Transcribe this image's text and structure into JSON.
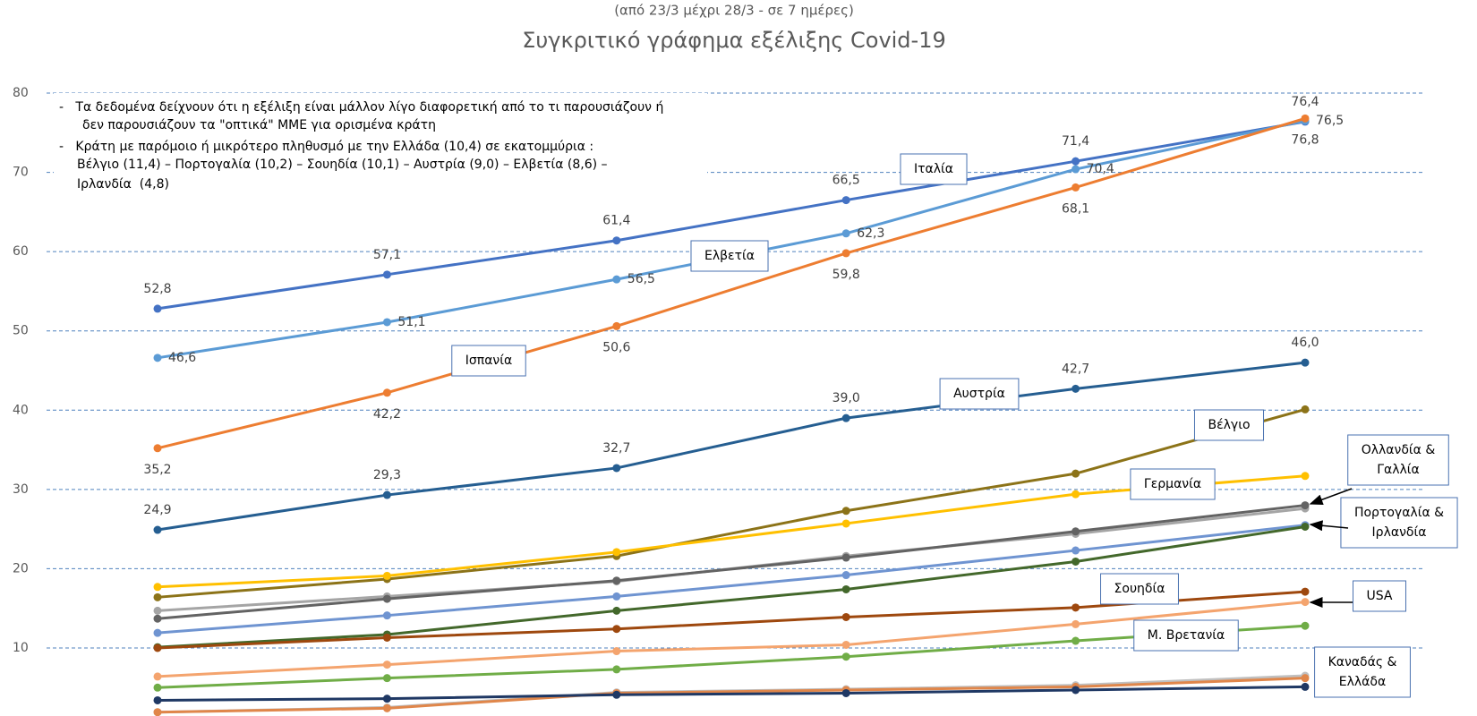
{
  "chart_data": {
    "type": "line",
    "subtitle": "(από 23/3 μέχρι 28/3 - σε 7 ημέρες)",
    "title": "Συγκριτικό γράφημα εξέλιξης Covid-19",
    "notes": [
      "-   Τα δεδομένα δείχνουν ότι η εξέλιξη είναι μάλλον λίγο διαφορετική από το τι παρουσιάζουν ή",
      "δεν παρουσιάζουν τα \"οπτικά\" ΜΜΕ για ορισμένα κράτη",
      "-   Κράτη με παρόμοιο ή μικρότερο πληθυσμό με την Ελλάδα (10,4) σε εκατομμύρια :",
      "Βέλγιο (11,4) – Πορτογαλία (10,2) – Σουηδία (10,1) – Αυστρία (9,0) – Ελβετία (8,6) –",
      "Ιρλανδία  (4,8)"
    ],
    "categories": [
      null,
      null,
      null,
      null,
      null,
      null
    ],
    "ylim": [
      0,
      80
    ],
    "yticks": [
      10,
      20,
      30,
      40,
      50,
      60,
      70,
      80
    ],
    "grid": true,
    "series": [
      {
        "name": "Ιταλία",
        "color": "#4472c4",
        "values": [
          52.8,
          57.1,
          61.4,
          66.5,
          71.4,
          76.4
        ],
        "value_labels": [
          "52,8",
          "57,1",
          "61,4",
          "66,5",
          "71,4",
          "76,4"
        ]
      },
      {
        "name": "Ελβετία",
        "color": "#5b9bd5",
        "values": [
          46.6,
          51.1,
          56.5,
          62.3,
          70.4,
          76.5
        ],
        "value_labels": [
          "46,6",
          "51,1",
          "56,5",
          "62,3",
          "70,4",
          "76,5"
        ]
      },
      {
        "name": "Ισπανία",
        "color": "#ed7d31",
        "values": [
          35.2,
          42.2,
          50.6,
          59.8,
          68.1,
          76.8
        ],
        "value_labels": [
          "35,2",
          "42,2",
          "50,6",
          "59,8",
          "68,1",
          "76,8"
        ]
      },
      {
        "name": "Αυστρία",
        "color": "#255e91",
        "values": [
          24.9,
          29.3,
          32.7,
          39.0,
          42.7,
          46.0
        ],
        "value_labels": [
          "24,9",
          "29,3",
          "32,7",
          "39,0",
          "42,7",
          "46,0"
        ]
      },
      {
        "name": "Βέλγιο",
        "color": "#8c7318",
        "values": [
          16.4,
          18.7,
          21.6,
          27.3,
          32.0,
          40.1
        ]
      },
      {
        "name": "Γερμανία",
        "color": "#ffc000",
        "values": [
          17.7,
          19.1,
          22.1,
          25.7,
          29.4,
          31.7
        ]
      },
      {
        "color": "#a5a5a5",
        "values": [
          14.7,
          16.5,
          18.4,
          21.6,
          24.4,
          27.6
        ]
      },
      {
        "color": "#636363",
        "values": [
          13.7,
          16.2,
          18.5,
          21.4,
          24.7,
          28.0
        ]
      },
      {
        "color": "#6f94d1",
        "values": [
          11.9,
          14.1,
          16.5,
          19.2,
          22.3,
          25.5
        ]
      },
      {
        "color": "#43682b",
        "values": [
          10.1,
          11.7,
          14.7,
          17.4,
          20.9,
          25.3
        ]
      },
      {
        "name": "Σουηδία",
        "color": "#9e480e",
        "values": [
          10.0,
          11.3,
          12.4,
          13.9,
          15.1,
          17.1
        ]
      },
      {
        "name": "USA",
        "color": "#f4a46e",
        "values": [
          6.4,
          7.9,
          9.6,
          10.4,
          13.0,
          15.8
        ]
      },
      {
        "name": "Μ. Βρετανία",
        "color": "#70ad47",
        "values": [
          5.0,
          6.2,
          7.3,
          8.9,
          10.9,
          12.8
        ]
      },
      {
        "color": "#c0c0c0",
        "values": [
          1.9,
          2.5,
          4.4,
          4.8,
          5.3,
          6.5
        ]
      },
      {
        "color": "#e0864a",
        "values": [
          1.9,
          2.4,
          4.3,
          4.7,
          5.1,
          6.2
        ]
      },
      {
        "color": "#1f3864",
        "values": [
          3.4,
          3.6,
          4.1,
          4.3,
          4.7,
          5.1
        ]
      }
    ],
    "annotations": [
      [
        "Ολλανδία &",
        "Γαλλία"
      ],
      [
        "Πορτογαλία &",
        "Ιρλανδία"
      ],
      [
        "Καναδάς &",
        "Ελλάδα"
      ]
    ]
  }
}
